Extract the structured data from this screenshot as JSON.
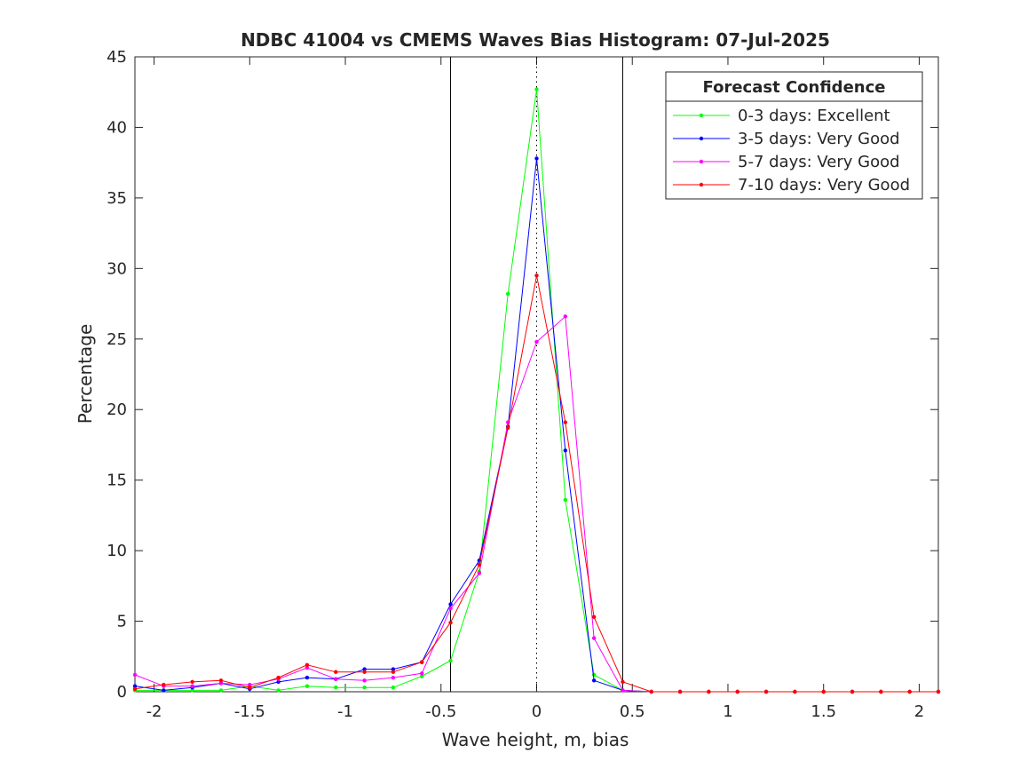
{
  "chart_data": {
    "type": "line",
    "title": "NDBC 41004 vs CMEMS Waves Bias Histogram: 07-Jul-2025",
    "xlabel": "Wave height, m, bias",
    "ylabel": "Percentage",
    "xlim": [
      -2.1,
      2.1
    ],
    "ylim": [
      0,
      45
    ],
    "xticks": [
      -2,
      -1.5,
      -1,
      -0.5,
      0,
      0.5,
      1,
      1.5,
      2
    ],
    "xtick_labels": [
      "-2",
      "-1.5",
      "-1",
      "-0.5",
      "0",
      "0.5",
      "1",
      "1.5",
      "2"
    ],
    "yticks": [
      0,
      5,
      10,
      15,
      20,
      25,
      30,
      35,
      40,
      45
    ],
    "ytick_labels": [
      "0",
      "5",
      "10",
      "15",
      "20",
      "25",
      "30",
      "35",
      "40",
      "45"
    ],
    "grid": false,
    "vertical_lines": [
      {
        "x": -0.45,
        "style": "solid"
      },
      {
        "x": 0.45,
        "style": "solid"
      },
      {
        "x": 0,
        "style": "dotted"
      }
    ],
    "legend": {
      "title": "Forecast Confidence",
      "placement": "top-right"
    },
    "x": [
      -2.1,
      -1.95,
      -1.8,
      -1.65,
      -1.5,
      -1.35,
      -1.2,
      -1.05,
      -0.9,
      -0.75,
      -0.6,
      -0.45,
      -0.3,
      -0.15,
      0,
      0.15,
      0.3,
      0.45,
      0.6,
      0.75,
      0.9,
      1.05,
      1.2,
      1.35,
      1.5,
      1.65,
      1.8,
      1.95,
      2.1
    ],
    "series": [
      {
        "name": "0-3 days: Excellent",
        "color": "#00ff00",
        "values": [
          0.1,
          0.1,
          0.1,
          0.1,
          0.4,
          0.1,
          0.4,
          0.3,
          0.3,
          0.3,
          1.1,
          2.2,
          8.5,
          28.2,
          42.7,
          13.6,
          1.2,
          0.1,
          0,
          0,
          0,
          0,
          0,
          0,
          0,
          0,
          0,
          0,
          0
        ]
      },
      {
        "name": "3-5 days: Very Good",
        "color": "#0000ff",
        "values": [
          0.4,
          0.1,
          0.3,
          0.6,
          0.2,
          0.7,
          1.0,
          0.9,
          1.6,
          1.6,
          2.1,
          6.2,
          9.3,
          18.8,
          37.8,
          17.1,
          0.8,
          0.1,
          0,
          0,
          0,
          0,
          0,
          0,
          0,
          0,
          0,
          0,
          0
        ]
      },
      {
        "name": "5-7 days: Very Good",
        "color": "#ff00ff",
        "values": [
          1.2,
          0.4,
          0.4,
          0.6,
          0.5,
          0.9,
          1.7,
          0.9,
          0.8,
          1.0,
          1.3,
          5.9,
          8.4,
          19.1,
          24.8,
          26.6,
          3.8,
          0.1,
          0,
          0,
          0,
          0,
          0,
          0,
          0,
          0,
          0,
          0,
          0
        ]
      },
      {
        "name": "7-10 days: Very Good",
        "color": "#ff0000",
        "values": [
          0.2,
          0.5,
          0.7,
          0.8,
          0.3,
          1.0,
          1.9,
          1.4,
          1.4,
          1.4,
          2.1,
          4.9,
          9.0,
          18.7,
          29.5,
          19.1,
          5.3,
          0.7,
          0,
          0,
          0,
          0,
          0,
          0,
          0,
          0,
          0,
          0,
          0
        ]
      }
    ]
  }
}
